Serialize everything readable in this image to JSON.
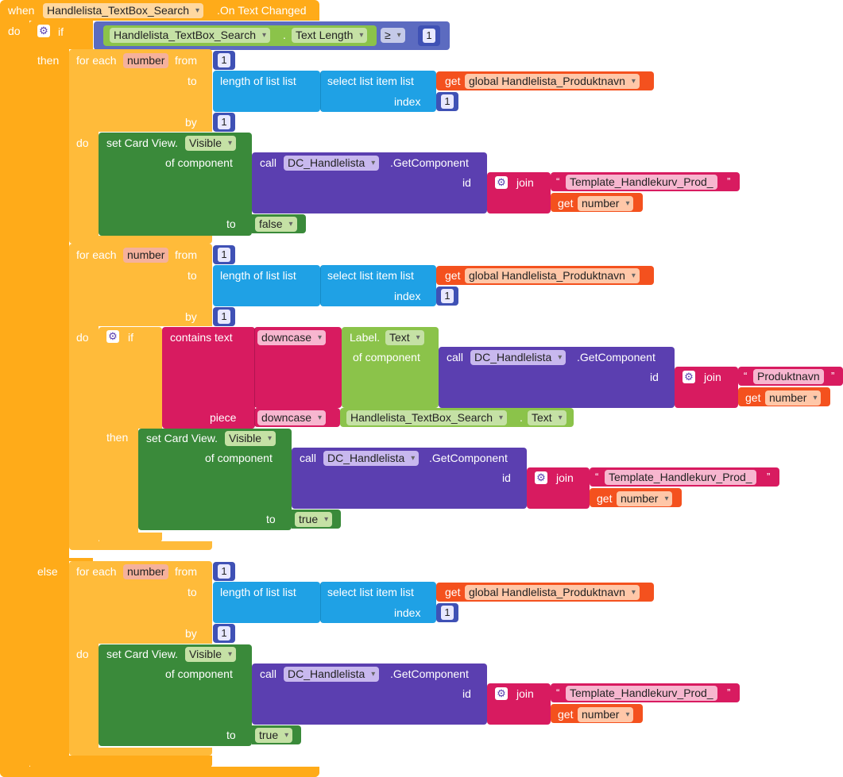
{
  "event": {
    "when": "when",
    "component": "Handlelista_TextBox_Search",
    "event_name": ".On Text Changed",
    "do": "do"
  },
  "kw": {
    "if": "if",
    "then": "then",
    "else": "else",
    "do": "do",
    "for_each": "for each",
    "from": "from",
    "to": "to",
    "by": "by",
    "set_card_view": "set Card View.",
    "of_component": "of component",
    "call": "call",
    "get_component": ".GetComponent",
    "id": "id",
    "join": "join",
    "get": "get",
    "length_of_list": "length of list  list",
    "select_list_item": "select list item  list",
    "index": "index",
    "contains_text": "contains  text",
    "piece": "piece",
    "label": "Label.",
    "dot": "."
  },
  "condition": {
    "component": "Handlelista_TextBox_Search",
    "property": "Text Length",
    "operator": "≥",
    "value": "1"
  },
  "values": {
    "var_number": "number",
    "one": "1",
    "visible": "Visible",
    "text": "Text",
    "dc_handlelista": "DC_Handlelista",
    "global_var": "global Handlelista_Produktnavn",
    "template": "Template_Handlekurv_Prod_",
    "produktnavn": "Produktnavn",
    "false": "false",
    "true": "true",
    "downcase": "downcase",
    "search_box": "Handlelista_TextBox_Search"
  },
  "colors": {
    "control": "#ffab19",
    "component_set": "#3a8a3a",
    "component_call": "#5b3fb0",
    "text": "#d81b60",
    "list": "#1fa1e5",
    "variable": "#f4511e"
  },
  "icons": {
    "mutator": "gear-icon",
    "dropdown": "chevron-down-icon",
    "quote": "quote-icon"
  }
}
